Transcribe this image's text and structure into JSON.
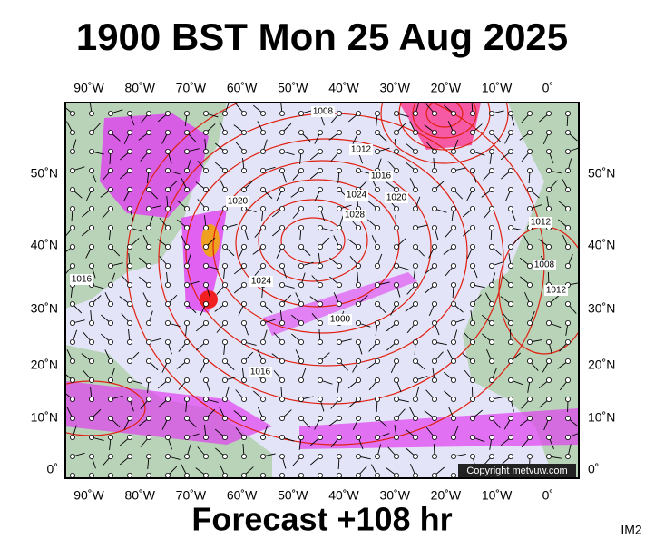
{
  "title": "1900 BST Mon 25 Aug 2025",
  "longitude_labels": [
    "90˚W",
    "80˚W",
    "70˚W",
    "60˚W",
    "50˚W",
    "40˚W",
    "30˚W",
    "20˚W",
    "10˚W",
    "0˚"
  ],
  "latitude_labels": [
    "50˚N",
    "40˚N",
    "30˚N",
    "20˚N",
    "10˚N",
    "0˚"
  ],
  "isobar_labels": [
    "1008",
    "1012",
    "1016",
    "1020",
    "1024",
    "1028",
    "1000",
    "1016",
    "1012",
    "1008",
    "1012",
    "1016",
    "1020",
    "1024"
  ],
  "copyright": "Copyright metvuw.com",
  "footer": "Forecast +108 hr",
  "image_id": "IM2"
}
